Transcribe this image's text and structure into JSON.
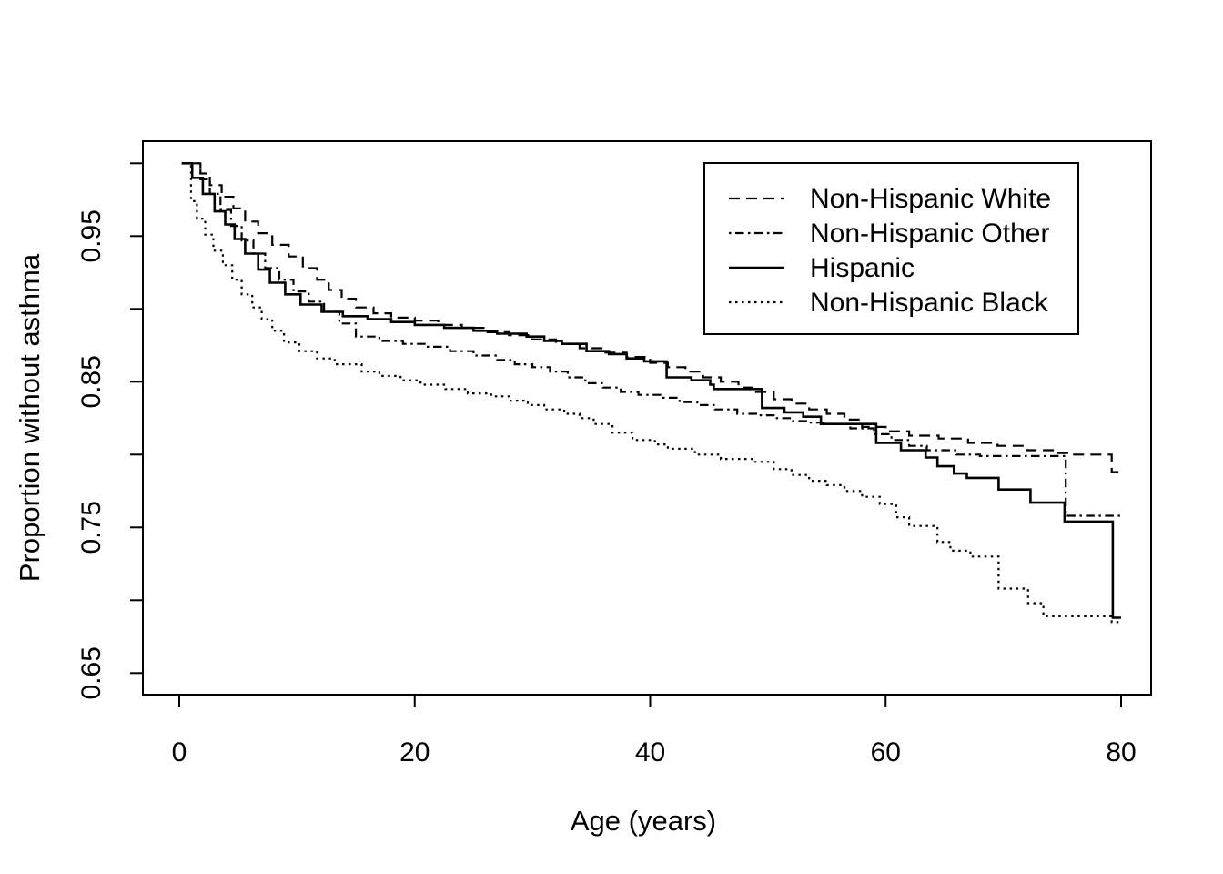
{
  "figure": {
    "background_color": "#ffffff",
    "foreground_color": "#000000"
  },
  "chart_data": {
    "type": "line",
    "subtype": "kaplan-meier-step-survival",
    "title": "",
    "xlabel": "Age (years)",
    "ylabel": "Proportion without asthma",
    "grid": false,
    "legend_position": "top-right",
    "legend_border": true,
    "x_axis": {
      "min": 0,
      "max": 80
    },
    "y_axis": {
      "tick_step": 0.05,
      "min_tick": 0.65,
      "max_tick": 1.0
    },
    "x_tick_values": [
      0,
      20,
      40,
      60,
      80
    ],
    "x_tick_labels": [
      "0",
      "20",
      "40",
      "60",
      "80"
    ],
    "y_tick_values": [
      0.65,
      0.7,
      0.75,
      0.8,
      0.85,
      0.9,
      0.95,
      1.0
    ],
    "y_tick_labeled_values": [
      0.65,
      0.75,
      0.85,
      0.95
    ],
    "y_tick_labels": [
      "0.65",
      "0.75",
      "0.85",
      "0.95"
    ],
    "series": [
      {
        "name": "Non-Hispanic White",
        "line_style": "dashed",
        "color": "#000000",
        "points": [
          [
            0.8,
            1.0
          ],
          [
            1.8,
            0.993
          ],
          [
            2.6,
            0.985
          ],
          [
            3.6,
            0.977
          ],
          [
            4.6,
            0.969
          ],
          [
            5.6,
            0.96
          ],
          [
            6.7,
            0.952
          ],
          [
            7.9,
            0.944
          ],
          [
            9.3,
            0.936
          ],
          [
            10.5,
            0.928
          ],
          [
            11.7,
            0.92
          ],
          [
            12.7,
            0.913
          ],
          [
            13.8,
            0.907
          ],
          [
            15,
            0.901
          ],
          [
            16.5,
            0.897
          ],
          [
            18,
            0.894
          ],
          [
            20,
            0.892
          ],
          [
            22,
            0.889
          ],
          [
            24,
            0.887
          ],
          [
            26,
            0.884
          ],
          [
            28,
            0.882
          ],
          [
            30,
            0.879
          ],
          [
            32,
            0.876
          ],
          [
            34,
            0.873
          ],
          [
            36,
            0.87
          ],
          [
            38,
            0.867
          ],
          [
            40,
            0.863
          ],
          [
            41.5,
            0.86
          ],
          [
            43,
            0.857
          ],
          [
            44.5,
            0.853
          ],
          [
            46,
            0.85
          ],
          [
            47.5,
            0.846
          ],
          [
            49,
            0.843
          ],
          [
            50.5,
            0.838
          ],
          [
            52,
            0.835
          ],
          [
            53.5,
            0.831
          ],
          [
            55,
            0.828
          ],
          [
            56.5,
            0.824
          ],
          [
            58,
            0.819
          ],
          [
            60,
            0.816
          ],
          [
            62,
            0.813
          ],
          [
            64.5,
            0.811
          ],
          [
            67,
            0.808
          ],
          [
            69.5,
            0.806
          ],
          [
            72,
            0.803
          ],
          [
            74.5,
            0.801
          ],
          [
            76,
            0.8
          ],
          [
            79.2,
            0.788
          ],
          [
            80,
            0.788
          ]
        ]
      },
      {
        "name": "Non-Hispanic Other",
        "line_style": "dashdot",
        "color": "#000000",
        "points": [
          [
            0.9,
            1.0
          ],
          [
            1.8,
            0.989
          ],
          [
            2.6,
            0.979
          ],
          [
            3.5,
            0.968
          ],
          [
            4.4,
            0.957
          ],
          [
            5.3,
            0.947
          ],
          [
            6.3,
            0.938
          ],
          [
            7.3,
            0.928
          ],
          [
            8.5,
            0.92
          ],
          [
            9.7,
            0.912
          ],
          [
            11,
            0.905
          ],
          [
            12.3,
            0.898
          ],
          [
            13.6,
            0.89
          ],
          [
            15,
            0.881
          ],
          [
            17,
            0.878
          ],
          [
            19,
            0.876
          ],
          [
            21,
            0.874
          ],
          [
            23,
            0.871
          ],
          [
            25,
            0.868
          ],
          [
            27,
            0.865
          ],
          [
            28.5,
            0.862
          ],
          [
            30,
            0.86
          ],
          [
            31.5,
            0.857
          ],
          [
            33,
            0.853
          ],
          [
            34.5,
            0.849
          ],
          [
            36,
            0.846
          ],
          [
            37.5,
            0.843
          ],
          [
            39,
            0.841
          ],
          [
            41,
            0.839
          ],
          [
            42.5,
            0.836
          ],
          [
            44,
            0.834
          ],
          [
            45.5,
            0.831
          ],
          [
            47.4,
            0.828
          ],
          [
            49,
            0.827
          ],
          [
            50.5,
            0.825
          ],
          [
            52,
            0.823
          ],
          [
            53.5,
            0.822
          ],
          [
            55,
            0.821
          ],
          [
            57,
            0.818
          ],
          [
            59,
            0.814
          ],
          [
            60.5,
            0.81
          ],
          [
            62,
            0.806
          ],
          [
            63.5,
            0.803
          ],
          [
            66,
            0.8
          ],
          [
            68,
            0.799
          ],
          [
            75.3,
            0.758
          ],
          [
            80,
            0.758
          ]
        ]
      },
      {
        "name": "Hispanic",
        "line_style": "solid",
        "color": "#000000",
        "points": [
          [
            0.2,
            1.0
          ],
          [
            1.1,
            0.99
          ],
          [
            2,
            0.979
          ],
          [
            3,
            0.967
          ],
          [
            3.9,
            0.958
          ],
          [
            4.7,
            0.948
          ],
          [
            5.6,
            0.938
          ],
          [
            6.7,
            0.927
          ],
          [
            7.7,
            0.918
          ],
          [
            9,
            0.91
          ],
          [
            10.3,
            0.903
          ],
          [
            12.1,
            0.898
          ],
          [
            13.9,
            0.895
          ],
          [
            16,
            0.893
          ],
          [
            18,
            0.891
          ],
          [
            20,
            0.889
          ],
          [
            22.5,
            0.887
          ],
          [
            25,
            0.885
          ],
          [
            27,
            0.883
          ],
          [
            29.5,
            0.881
          ],
          [
            31,
            0.878
          ],
          [
            32.5,
            0.876
          ],
          [
            34.6,
            0.871
          ],
          [
            36.5,
            0.869
          ],
          [
            38,
            0.866
          ],
          [
            39.5,
            0.864
          ],
          [
            41.4,
            0.853
          ],
          [
            43.5,
            0.851
          ],
          [
            45.1,
            0.848
          ],
          [
            45.4,
            0.845
          ],
          [
            49.5,
            0.832
          ],
          [
            51.4,
            0.829
          ],
          [
            53,
            0.826
          ],
          [
            54.5,
            0.821
          ],
          [
            59.2,
            0.808
          ],
          [
            61.3,
            0.803
          ],
          [
            63.4,
            0.798
          ],
          [
            64.4,
            0.792
          ],
          [
            65.8,
            0.787
          ],
          [
            66.9,
            0.784
          ],
          [
            69.6,
            0.776
          ],
          [
            72.3,
            0.767
          ],
          [
            75.2,
            0.754
          ],
          [
            79.3,
            0.688
          ],
          [
            80,
            0.688
          ]
        ]
      },
      {
        "name": "Non-Hispanic Black",
        "line_style": "dotted",
        "color": "#000000",
        "points": [
          [
            0.6,
            1.0
          ],
          [
            1,
            0.974
          ],
          [
            1.5,
            0.962
          ],
          [
            2.2,
            0.951
          ],
          [
            2.9,
            0.94
          ],
          [
            3.7,
            0.93
          ],
          [
            4.5,
            0.92
          ],
          [
            5.3,
            0.91
          ],
          [
            6.2,
            0.901
          ],
          [
            7,
            0.893
          ],
          [
            7.9,
            0.885
          ],
          [
            8.9,
            0.877
          ],
          [
            10.2,
            0.871
          ],
          [
            11.7,
            0.866
          ],
          [
            13.2,
            0.862
          ],
          [
            15.5,
            0.857
          ],
          [
            17,
            0.854
          ],
          [
            18.8,
            0.851
          ],
          [
            20.5,
            0.848
          ],
          [
            22.6,
            0.845
          ],
          [
            24.5,
            0.842
          ],
          [
            26.5,
            0.84
          ],
          [
            28,
            0.837
          ],
          [
            29.6,
            0.834
          ],
          [
            31,
            0.831
          ],
          [
            32.7,
            0.828
          ],
          [
            34,
            0.825
          ],
          [
            35.2,
            0.821
          ],
          [
            36.8,
            0.815
          ],
          [
            38.5,
            0.81
          ],
          [
            40.4,
            0.807
          ],
          [
            41.5,
            0.804
          ],
          [
            43.8,
            0.8
          ],
          [
            46,
            0.797
          ],
          [
            48.8,
            0.795
          ],
          [
            50.5,
            0.79
          ],
          [
            52,
            0.786
          ],
          [
            53.5,
            0.782
          ],
          [
            55,
            0.779
          ],
          [
            56.5,
            0.775
          ],
          [
            58,
            0.771
          ],
          [
            59.5,
            0.766
          ],
          [
            60.9,
            0.757
          ],
          [
            62,
            0.751
          ],
          [
            64.4,
            0.74
          ],
          [
            65.5,
            0.734
          ],
          [
            67.2,
            0.73
          ],
          [
            69.6,
            0.708
          ],
          [
            72.1,
            0.698
          ],
          [
            73.4,
            0.689
          ],
          [
            79.2,
            0.685
          ],
          [
            80,
            0.685
          ]
        ]
      }
    ]
  }
}
